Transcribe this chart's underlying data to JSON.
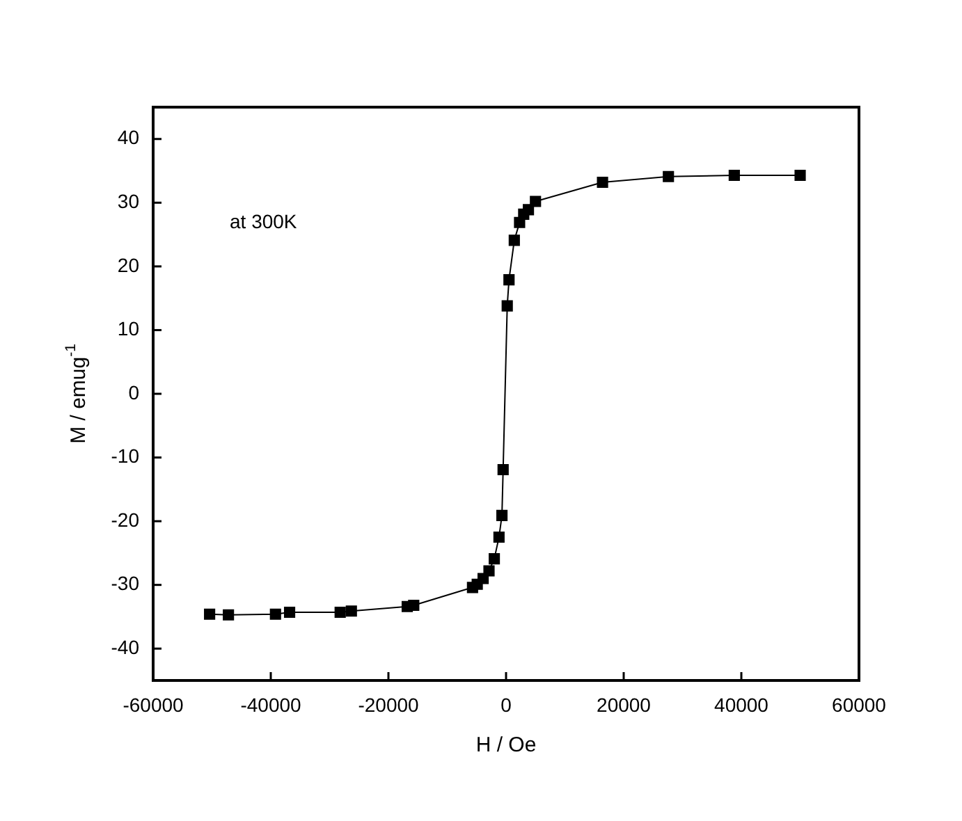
{
  "chart_data": {
    "type": "line",
    "xlabel": "H / Oe",
    "ylabel": "M / emug$^{-1}$",
    "annotations": [
      "at 300K"
    ],
    "x": [
      -50400,
      -47200,
      -39200,
      -36800,
      -28200,
      -26300,
      -16800,
      -15700,
      -5700,
      -4900,
      -3900,
      -2900,
      -2000,
      -1200,
      -700,
      -500,
      200,
      500,
      1400,
      2300,
      3000,
      3800,
      5000,
      16400,
      27600,
      38800,
      50000
    ],
    "series": [
      {
        "color": "#000000",
        "values": [
          -34.6,
          -34.7,
          -34.6,
          -34.3,
          -34.3,
          -34.1,
          -33.4,
          -33.2,
          -30.4,
          -29.9,
          -29.0,
          -27.8,
          -25.9,
          -22.5,
          -19.1,
          -11.9,
          13.8,
          17.9,
          24.1,
          26.9,
          28.2,
          28.9,
          30.2,
          33.2,
          34.1,
          34.3,
          34.3
        ]
      }
    ],
    "xlim": [
      -60000,
      60000
    ],
    "xticks": [
      -60000,
      -40000,
      -20000,
      0,
      20000,
      40000,
      60000
    ],
    "ylim": [
      -45,
      45
    ],
    "yticks": [
      -40,
      -30,
      -20,
      -10,
      0,
      10,
      20,
      30,
      40
    ],
    "grid": false,
    "legend": false,
    "marker": "square",
    "line_style": "solid"
  }
}
